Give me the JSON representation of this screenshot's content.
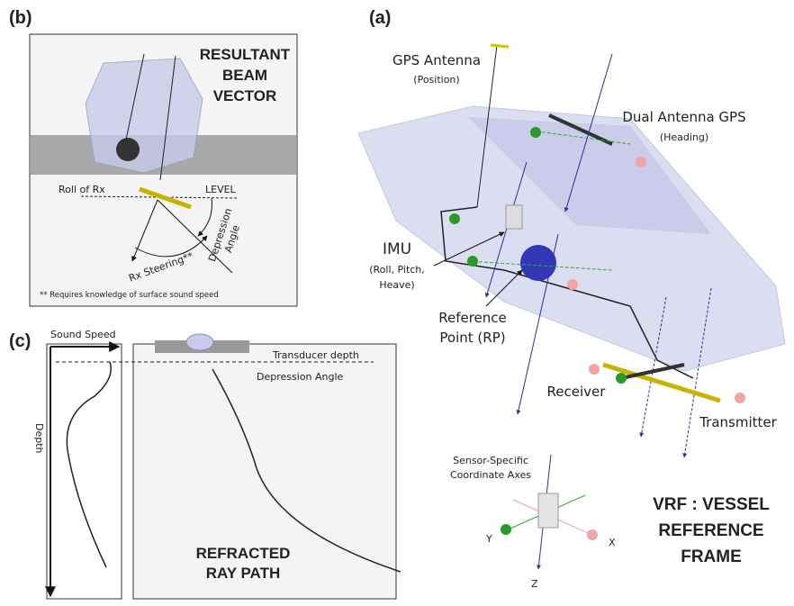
{
  "panel_b": {
    "label": "(b)",
    "title_lines": [
      "RESULTANT",
      "BEAM",
      "VECTOR"
    ],
    "roll": "Roll of Rx",
    "level": "LEVEL",
    "depression_lines": [
      "Depression",
      "Angle"
    ],
    "steering": "Rx Steering**",
    "footnote": "** Requires knowledge of surface sound speed"
  },
  "panel_c": {
    "label": "(c)",
    "sound_speed": "Sound Speed",
    "depth": "Depth",
    "transducer_depth": "Transducer depth",
    "depression_angle": "Depression Angle",
    "title_lines": [
      "REFRACTED",
      "RAY PATH"
    ]
  },
  "panel_a": {
    "label": "(a)",
    "gps_antenna": "GPS Antenna",
    "gps_note": "(Position)",
    "dual_gps": "Dual Antenna GPS",
    "dual_note": "(Heading)",
    "imu": "IMU",
    "imu_note_lines": [
      "(Roll, Pitch,",
      "Heave)"
    ],
    "rp_lines": [
      "Reference",
      "Point (RP)"
    ],
    "receiver": "Receiver",
    "transmitter": "Transmitter",
    "axes_lines": [
      "Sensor-Specific",
      "Coordinate Axes"
    ],
    "axis_y": "Y",
    "axis_x": "X",
    "axis_z": "Z",
    "title_lines": [
      "VRF : VESSEL",
      "REFERENCE",
      "FRAME"
    ]
  }
}
